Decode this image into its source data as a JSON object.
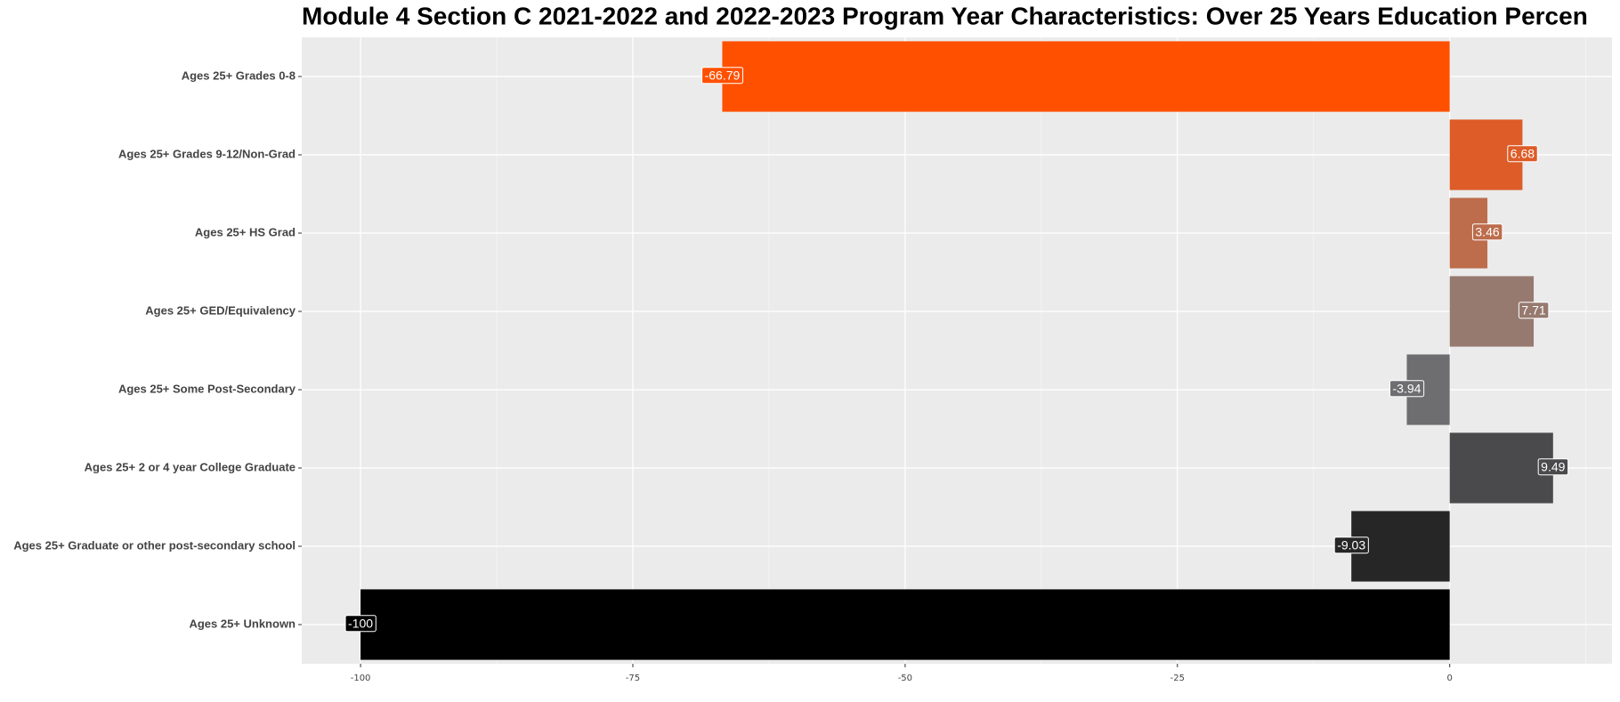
{
  "chart_data": {
    "type": "bar",
    "orientation": "horizontal",
    "title": "Module 4 Section C 2021-2022 and 2022-2023 Program Year Characteristics: Over 25 Years Education Percen",
    "categories": [
      "Ages 25+ Grades 0-8",
      "Ages 25+ Grades 9-12/Non-Grad",
      "Ages 25+ HS Grad",
      "Ages 25+ GED/Equivalency",
      "Ages 25+ Some Post-Secondary",
      "Ages 25+ 2 or 4 year College Graduate",
      "Ages 25+ Graduate or other post-secondary school",
      "Ages 25+ Unknown"
    ],
    "values": [
      -66.79,
      6.68,
      3.46,
      7.71,
      -3.94,
      9.49,
      -9.03,
      -100
    ],
    "colors": [
      "#ff5000",
      "#dd5c28",
      "#bd6c4c",
      "#967a70",
      "#6e6e70",
      "#4a4a4c",
      "#262626",
      "#000000"
    ],
    "ylim": [
      -105.4,
      14.9
    ],
    "yticks": [
      -100,
      -75,
      -50,
      -25,
      0
    ],
    "grid": true
  }
}
